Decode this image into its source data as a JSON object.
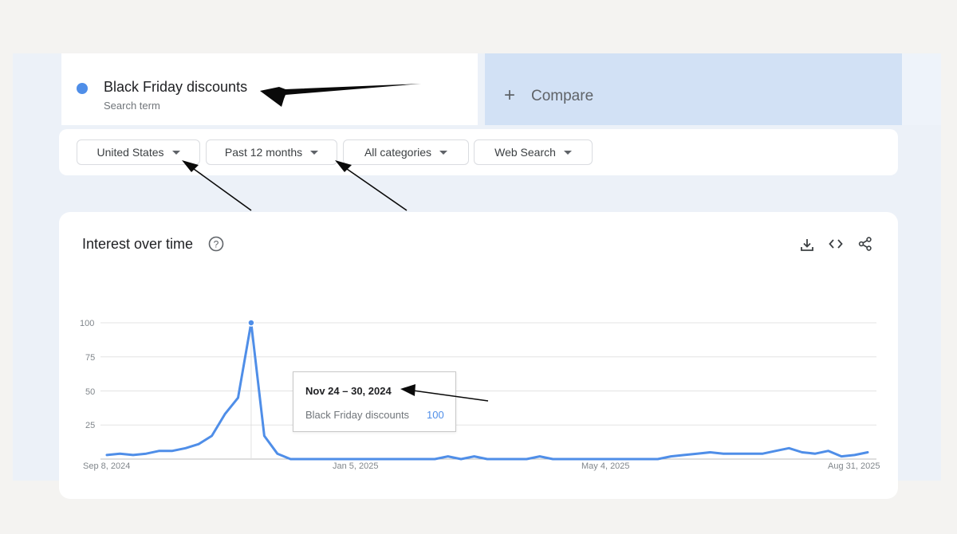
{
  "search_term": {
    "label": "Black Friday discounts",
    "sublabel": "Search term",
    "color": "#4f8ee8"
  },
  "compare": {
    "plus": "+",
    "label": "Compare"
  },
  "filters": [
    {
      "label": "United States"
    },
    {
      "label": "Past 12 months"
    },
    {
      "label": "All categories"
    },
    {
      "label": "Web Search"
    }
  ],
  "panel": {
    "title": "Interest over time",
    "icons": [
      "help-icon",
      "download-icon",
      "embed-code-icon",
      "share-icon"
    ]
  },
  "tooltip": {
    "date": "Nov 24 – 30, 2024",
    "series": "Black Friday discounts",
    "value": "100"
  },
  "chart_data": {
    "type": "line",
    "title": "",
    "xlabel": "",
    "ylabel": "",
    "ylim": [
      0,
      100
    ],
    "yticks": [
      "100",
      "75",
      "50",
      "25"
    ],
    "xtick_labels": [
      "Sep 8, 2024",
      "Jan 5, 2025",
      "May 4, 2025",
      "Aug 31, 2025"
    ],
    "grid": true,
    "series": [
      {
        "name": "Black Friday discounts",
        "color": "#4f8ee8",
        "values": [
          3,
          4,
          3,
          4,
          6,
          6,
          8,
          11,
          17,
          33,
          45,
          100,
          17,
          4,
          0,
          0,
          0,
          0,
          0,
          0,
          0,
          0,
          0,
          0,
          0,
          0,
          2,
          0,
          2,
          0,
          0,
          0,
          0,
          2,
          0,
          0,
          0,
          0,
          0,
          0,
          0,
          0,
          0,
          2,
          3,
          4,
          5,
          4,
          4,
          4,
          4,
          6,
          8,
          5,
          4,
          6,
          2,
          3,
          5
        ]
      }
    ],
    "highlight_index": 11
  }
}
